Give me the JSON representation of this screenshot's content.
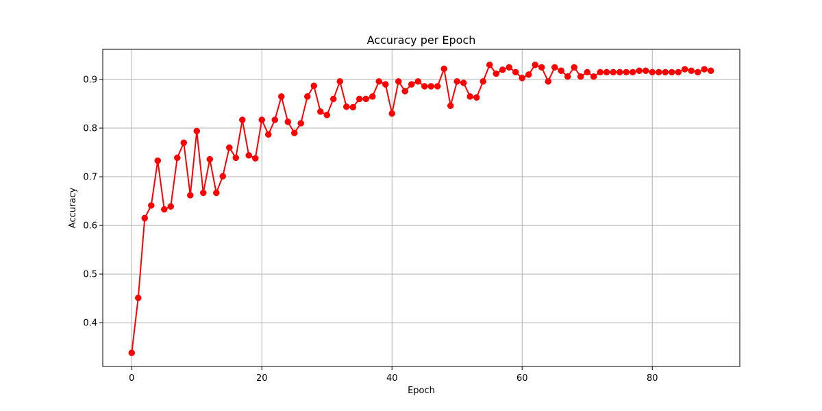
{
  "chart_data": {
    "type": "line",
    "title": "Accuracy per Epoch",
    "xlabel": "Epoch",
    "ylabel": "Accuracy",
    "xlim": [
      -4.45,
      93.45
    ],
    "ylim": [
      0.31,
      0.962
    ],
    "xticks": [
      0,
      20,
      40,
      60,
      80
    ],
    "yticks": [
      0.4,
      0.5,
      0.6,
      0.7,
      0.8,
      0.9
    ],
    "xtick_labels": [
      "0",
      "20",
      "40",
      "60",
      "80"
    ],
    "ytick_labels": [
      "0.4",
      "0.5",
      "0.6",
      "0.7",
      "0.8",
      "0.9"
    ],
    "grid": true,
    "series": [
      {
        "color": "#ff0000",
        "marker": "circle",
        "x": [
          0,
          1,
          2,
          3,
          4,
          5,
          6,
          7,
          8,
          9,
          10,
          11,
          12,
          13,
          14,
          15,
          16,
          17,
          18,
          19,
          20,
          21,
          22,
          23,
          24,
          25,
          26,
          27,
          28,
          29,
          30,
          31,
          32,
          33,
          34,
          35,
          36,
          37,
          38,
          39,
          40,
          41,
          42,
          43,
          44,
          45,
          46,
          47,
          48,
          49,
          50,
          51,
          52,
          53,
          54,
          55,
          56,
          57,
          58,
          59,
          60,
          61,
          62,
          63,
          64,
          65,
          66,
          67,
          68,
          69,
          70,
          71,
          72,
          73,
          74,
          75,
          76,
          77,
          78,
          79,
          80,
          81,
          82,
          83,
          84,
          85,
          86,
          87,
          88,
          89
        ],
        "values": [
          0.338,
          0.451,
          0.615,
          0.641,
          0.733,
          0.633,
          0.639,
          0.739,
          0.77,
          0.662,
          0.794,
          0.667,
          0.736,
          0.667,
          0.701,
          0.76,
          0.739,
          0.817,
          0.744,
          0.738,
          0.817,
          0.787,
          0.817,
          0.865,
          0.813,
          0.79,
          0.81,
          0.865,
          0.887,
          0.834,
          0.827,
          0.86,
          0.896,
          0.844,
          0.843,
          0.86,
          0.86,
          0.865,
          0.896,
          0.89,
          0.83,
          0.896,
          0.876,
          0.89,
          0.896,
          0.886,
          0.886,
          0.886,
          0.922,
          0.846,
          0.896,
          0.893,
          0.865,
          0.863,
          0.896,
          0.93,
          0.912,
          0.92,
          0.925,
          0.915,
          0.903,
          0.91,
          0.93,
          0.925,
          0.896,
          0.925,
          0.918,
          0.906,
          0.925,
          0.906,
          0.915,
          0.906,
          0.915,
          0.915,
          0.915,
          0.915,
          0.915,
          0.915,
          0.918,
          0.918,
          0.915,
          0.915,
          0.915,
          0.915,
          0.915,
          0.921,
          0.918,
          0.915,
          0.921,
          0.918
        ]
      }
    ]
  }
}
